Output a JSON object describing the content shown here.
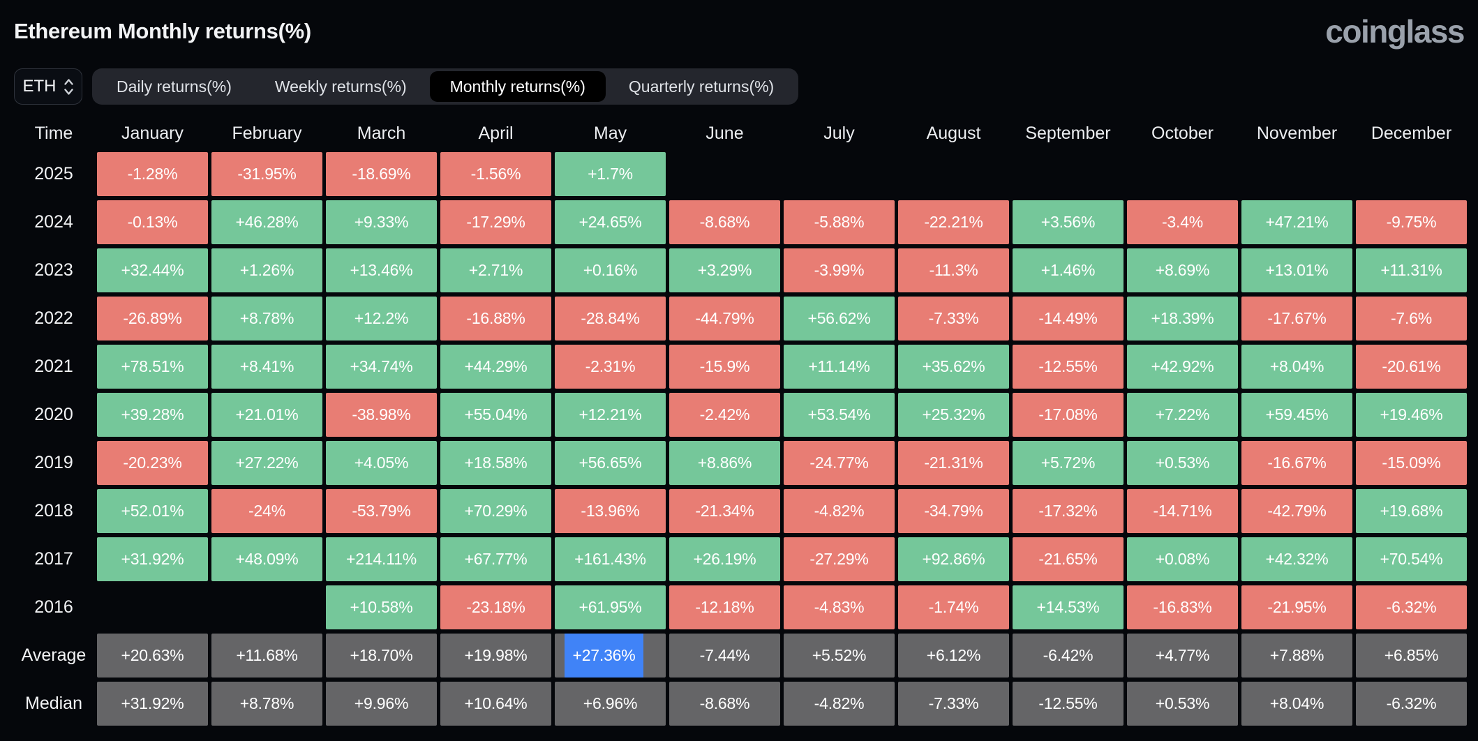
{
  "page": {
    "title": "Ethereum Monthly returns(%)",
    "logo": "coinglass"
  },
  "controls": {
    "symbol_select": {
      "value": "ETH",
      "icon": "select-chevrons-icon"
    },
    "tabs": [
      {
        "label": "Daily returns(%)",
        "active": false
      },
      {
        "label": "Weekly returns(%)",
        "active": false
      },
      {
        "label": "Monthly returns(%)",
        "active": true
      },
      {
        "label": "Quarterly returns(%)",
        "active": false
      }
    ]
  },
  "colors": {
    "background": "#05070b",
    "positive": "#75c79a",
    "negative": "#e87d74",
    "neutral": "#656567",
    "highlight": "#4083f7",
    "tabbar_bg": "#24262d",
    "active_tab_bg": "#000000",
    "logo_gray": "#9aa1ab"
  },
  "chart_data": {
    "type": "table",
    "title": "Ethereum Monthly returns(%)",
    "columns": [
      "Time",
      "January",
      "February",
      "March",
      "April",
      "May",
      "June",
      "July",
      "August",
      "September",
      "October",
      "November",
      "December"
    ],
    "rows": [
      {
        "label": "2025",
        "kind": "year",
        "values": [
          "-1.28%",
          "-31.95%",
          "-18.69%",
          "-1.56%",
          "+1.7%",
          "",
          "",
          "",
          "",
          "",
          "",
          ""
        ]
      },
      {
        "label": "2024",
        "kind": "year",
        "values": [
          "-0.13%",
          "+46.28%",
          "+9.33%",
          "-17.29%",
          "+24.65%",
          "-8.68%",
          "-5.88%",
          "-22.21%",
          "+3.56%",
          "-3.4%",
          "+47.21%",
          "-9.75%"
        ]
      },
      {
        "label": "2023",
        "kind": "year",
        "values": [
          "+32.44%",
          "+1.26%",
          "+13.46%",
          "+2.71%",
          "+0.16%",
          "+3.29%",
          "-3.99%",
          "-11.3%",
          "+1.46%",
          "+8.69%",
          "+13.01%",
          "+11.31%"
        ]
      },
      {
        "label": "2022",
        "kind": "year",
        "values": [
          "-26.89%",
          "+8.78%",
          "+12.2%",
          "-16.88%",
          "-28.84%",
          "-44.79%",
          "+56.62%",
          "-7.33%",
          "-14.49%",
          "+18.39%",
          "-17.67%",
          "-7.6%"
        ]
      },
      {
        "label": "2021",
        "kind": "year",
        "values": [
          "+78.51%",
          "+8.41%",
          "+34.74%",
          "+44.29%",
          "-2.31%",
          "-15.9%",
          "+11.14%",
          "+35.62%",
          "-12.55%",
          "+42.92%",
          "+8.04%",
          "-20.61%"
        ]
      },
      {
        "label": "2020",
        "kind": "year",
        "values": [
          "+39.28%",
          "+21.01%",
          "-38.98%",
          "+55.04%",
          "+12.21%",
          "-2.42%",
          "+53.54%",
          "+25.32%",
          "-17.08%",
          "+7.22%",
          "+59.45%",
          "+19.46%"
        ]
      },
      {
        "label": "2019",
        "kind": "year",
        "values": [
          "-20.23%",
          "+27.22%",
          "+4.05%",
          "+18.58%",
          "+56.65%",
          "+8.86%",
          "-24.77%",
          "-21.31%",
          "+5.72%",
          "+0.53%",
          "-16.67%",
          "-15.09%"
        ]
      },
      {
        "label": "2018",
        "kind": "year",
        "values": [
          "+52.01%",
          "-24%",
          "-53.79%",
          "+70.29%",
          "-13.96%",
          "-21.34%",
          "-4.82%",
          "-34.79%",
          "-17.32%",
          "-14.71%",
          "-42.79%",
          "+19.68%"
        ]
      },
      {
        "label": "2017",
        "kind": "year",
        "values": [
          "+31.92%",
          "+48.09%",
          "+214.11%",
          "+67.77%",
          "+161.43%",
          "+26.19%",
          "-27.29%",
          "+92.86%",
          "-21.65%",
          "+0.08%",
          "+42.32%",
          "+70.54%"
        ]
      },
      {
        "label": "2016",
        "kind": "year",
        "values": [
          "",
          "",
          "+10.58%",
          "-23.18%",
          "+61.95%",
          "-12.18%",
          "-4.83%",
          "-1.74%",
          "+14.53%",
          "-16.83%",
          "-21.95%",
          "-6.32%"
        ]
      },
      {
        "label": "Average",
        "kind": "summary",
        "highlight": {
          "col": 4
        },
        "values": [
          "+20.63%",
          "+11.68%",
          "+18.70%",
          "+19.98%",
          "+27.36%",
          "-7.44%",
          "+5.52%",
          "+6.12%",
          "-6.42%",
          "+4.77%",
          "+7.88%",
          "+6.85%"
        ]
      },
      {
        "label": "Median",
        "kind": "summary",
        "values": [
          "+31.92%",
          "+8.78%",
          "+9.96%",
          "+10.64%",
          "+6.96%",
          "-8.68%",
          "-4.82%",
          "-7.33%",
          "-12.55%",
          "+0.53%",
          "+8.04%",
          "-6.32%"
        ]
      }
    ]
  }
}
